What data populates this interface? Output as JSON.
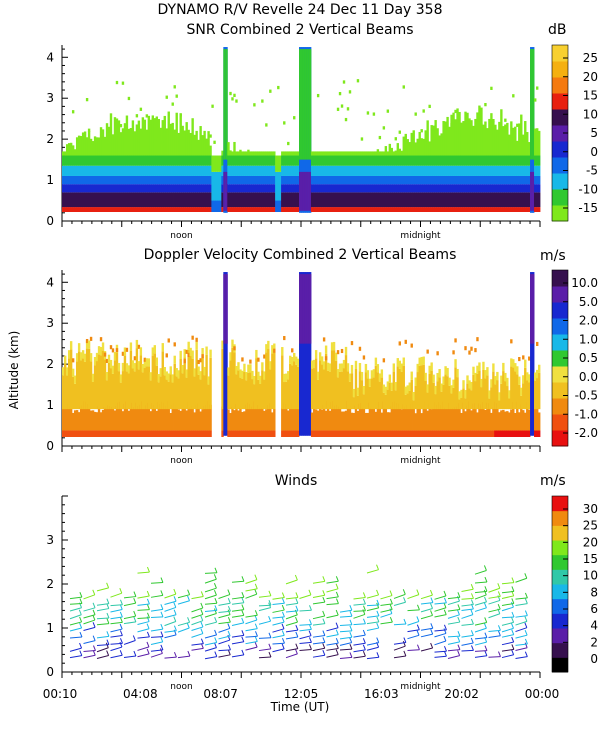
{
  "header": {
    "line1": "DYNAMO R/V Revelle  24 Dec 11 Day 358",
    "line2": "SNR Combined 2 Vertical Beams"
  },
  "y_axis_label": "Altitude (km)",
  "x_axis_label": "Time (UT)",
  "chart_data": [
    {
      "type": "heatmap",
      "title": "SNR Combined 2 Vertical Beams",
      "colorbar_unit": "dB",
      "colorbar_ticks": [
        "25",
        "20",
        "15",
        "10",
        "5",
        "0",
        "-5",
        "-10",
        "-15"
      ],
      "colors": [
        "#7fe81c",
        "#30c830",
        "#18b8e8",
        "#1068e8",
        "#1828d0",
        "#5a1ea8",
        "#36104e",
        "#e82010",
        "#f57a10",
        "#f5b010",
        "#f8d030"
      ],
      "ylim": [
        0,
        4.3
      ],
      "yticks": [
        "0",
        "1",
        "2",
        "3",
        "4"
      ],
      "xmarks": [
        "noon",
        "midnight"
      ]
    },
    {
      "type": "heatmap",
      "title": "Doppler Velocity Combined 2 Vertical Beams",
      "colorbar_unit": "m/s",
      "colorbar_ticks": [
        "10.0",
        "5.0",
        "2.0",
        "1.0",
        "0.5",
        "0.0",
        "-0.5",
        "-1.0",
        "-2.0"
      ],
      "colors": [
        "#e81010",
        "#f05010",
        "#f08a10",
        "#f0c020",
        "#f0e040",
        "#30c830",
        "#18b8e8",
        "#1068e8",
        "#1828d0",
        "#5a1ea8",
        "#36104e"
      ],
      "ylim": [
        0,
        4.3
      ],
      "yticks": [
        "0",
        "1",
        "2",
        "3",
        "4"
      ],
      "xmarks": [
        "noon",
        "midnight"
      ]
    },
    {
      "type": "scatter",
      "title": "Winds",
      "colorbar_unit": "m/s",
      "colorbar_ticks": [
        "30",
        "25",
        "20",
        "15",
        "10",
        "8",
        "6",
        "4",
        "2",
        "0"
      ],
      "colors": [
        "#000000",
        "#36104e",
        "#5a1ea8",
        "#1828d0",
        "#1068e8",
        "#18b8e8",
        "#30c8a8",
        "#30c830",
        "#7fe81c",
        "#f0c020",
        "#f08a10",
        "#e81010"
      ],
      "ylim": [
        0,
        4
      ],
      "yticks": [
        "0",
        "1",
        "2",
        "3"
      ],
      "xticks": [
        "00:10",
        "04:08",
        "08:07",
        "12:05",
        "16:03",
        "20:02",
        "00:00"
      ],
      "xmarks": [
        "noon",
        "midnight"
      ]
    }
  ]
}
